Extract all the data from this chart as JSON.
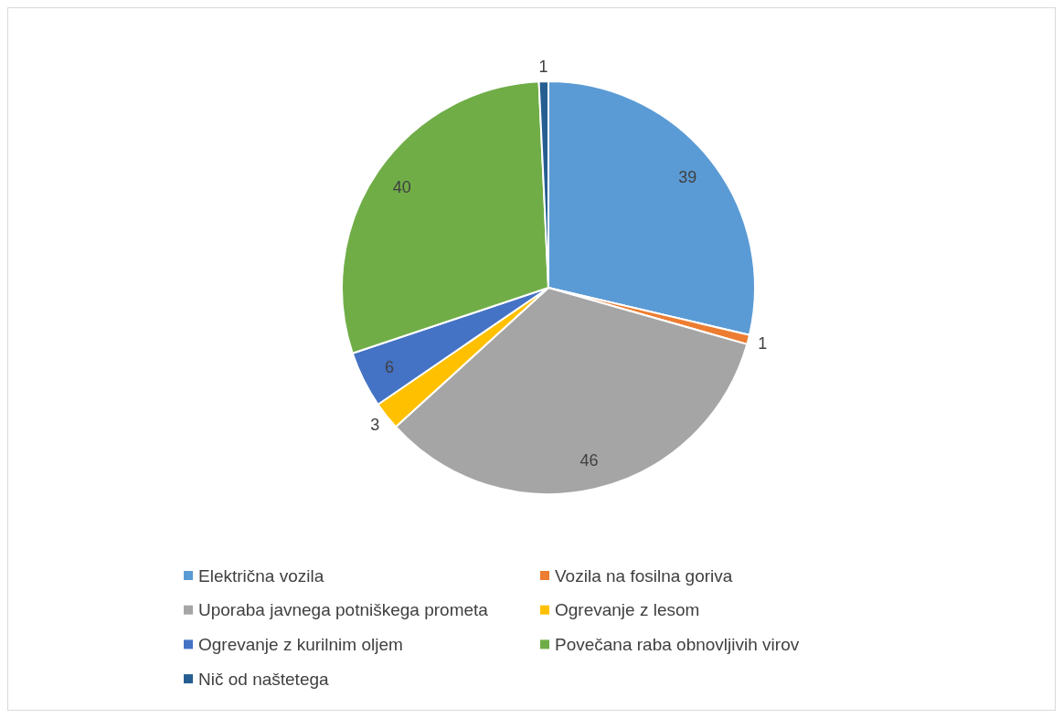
{
  "chart_data": {
    "type": "pie",
    "categories": [
      "Električna vozila",
      "Vozila na fosilna goriva",
      "Uporaba javnega potniškega prometa",
      "Ogrevanje z lesom",
      "Ogrevanje z kurilnim oljem",
      "Povečana raba obnovljivih virov",
      "Nič od naštetega"
    ],
    "values": [
      39,
      1,
      46,
      3,
      6,
      40,
      1
    ],
    "colors": [
      "#5b9bd5",
      "#ed7d31",
      "#a5a5a5",
      "#ffc000",
      "#4472c4",
      "#70ad47",
      "#255e91"
    ],
    "data_labels": true,
    "legend": "bottom"
  }
}
